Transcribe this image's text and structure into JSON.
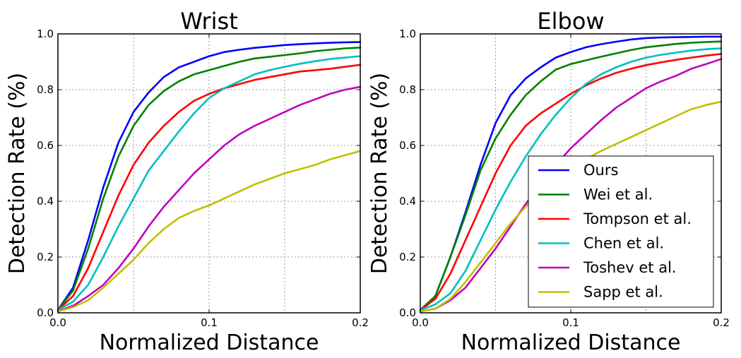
{
  "chart_data": [
    {
      "type": "line",
      "title": "Wrist",
      "xlabel": "Normalized Distance",
      "ylabel": "Detection Rate (%)",
      "xlim": [
        0.0,
        0.2
      ],
      "ylim": [
        0.0,
        1.0
      ],
      "xticks": [
        "0.0",
        "0.1",
        "0.2"
      ],
      "yticks": [
        "0.0",
        "0.2",
        "0.4",
        "0.6",
        "0.8",
        "1.0"
      ],
      "grid": true,
      "legend": null,
      "x": [
        0,
        0.01,
        0.02,
        0.03,
        0.04,
        0.05,
        0.06,
        0.07,
        0.08,
        0.09,
        0.1,
        0.11,
        0.12,
        0.13,
        0.14,
        0.15,
        0.16,
        0.17,
        0.18,
        0.19,
        0.2
      ],
      "series": [
        {
          "name": "Ours",
          "color": "#0000ff",
          "values": [
            0.01,
            0.09,
            0.26,
            0.45,
            0.61,
            0.72,
            0.79,
            0.845,
            0.88,
            0.9,
            0.92,
            0.935,
            0.943,
            0.95,
            0.955,
            0.96,
            0.963,
            0.966,
            0.968,
            0.97,
            0.971
          ]
        },
        {
          "name": "Wei et al.",
          "color": "#008000",
          "values": [
            0.01,
            0.08,
            0.23,
            0.41,
            0.56,
            0.67,
            0.745,
            0.795,
            0.83,
            0.855,
            0.87,
            0.885,
            0.9,
            0.912,
            0.918,
            0.924,
            0.93,
            0.938,
            0.943,
            0.948,
            0.951
          ]
        },
        {
          "name": "Tompson et al.",
          "color": "#ff0000",
          "values": [
            0.01,
            0.06,
            0.16,
            0.29,
            0.42,
            0.53,
            0.61,
            0.67,
            0.72,
            0.76,
            0.785,
            0.805,
            0.82,
            0.835,
            0.845,
            0.855,
            0.865,
            0.87,
            0.875,
            0.882,
            0.889
          ]
        },
        {
          "name": "Chen et al.",
          "color": "#00bfbf",
          "values": [
            0.01,
            0.04,
            0.1,
            0.2,
            0.31,
            0.41,
            0.51,
            0.58,
            0.65,
            0.715,
            0.77,
            0.805,
            0.83,
            0.855,
            0.87,
            0.882,
            0.893,
            0.902,
            0.91,
            0.915,
            0.92
          ]
        },
        {
          "name": "Toshev et al.",
          "color": "#bf00bf",
          "values": [
            0.005,
            0.025,
            0.06,
            0.1,
            0.16,
            0.23,
            0.31,
            0.38,
            0.44,
            0.5,
            0.55,
            0.6,
            0.64,
            0.67,
            0.695,
            0.72,
            0.745,
            0.765,
            0.785,
            0.8,
            0.81
          ]
        },
        {
          "name": "Sapp et al.",
          "color": "#bfbf00",
          "values": [
            0.005,
            0.02,
            0.045,
            0.09,
            0.14,
            0.19,
            0.25,
            0.3,
            0.34,
            0.365,
            0.385,
            0.41,
            0.435,
            0.46,
            0.48,
            0.5,
            0.515,
            0.53,
            0.55,
            0.565,
            0.58
          ]
        }
      ]
    },
    {
      "type": "line",
      "title": "Elbow",
      "xlabel": "Normalized Distance",
      "ylabel": "Detection Rate (%)",
      "xlim": [
        0.0,
        0.2
      ],
      "ylim": [
        0.0,
        1.0
      ],
      "xticks": [
        "0.0",
        "0.1",
        "0.2"
      ],
      "yticks": [
        "0.0",
        "0.2",
        "0.4",
        "0.6",
        "0.8",
        "1.0"
      ],
      "grid": true,
      "legend": "lower-right",
      "x": [
        0,
        0.01,
        0.02,
        0.03,
        0.04,
        0.05,
        0.06,
        0.07,
        0.08,
        0.09,
        0.1,
        0.11,
        0.12,
        0.13,
        0.14,
        0.15,
        0.16,
        0.17,
        0.18,
        0.19,
        0.2
      ],
      "series": [
        {
          "name": "Ours",
          "color": "#0000ff",
          "values": [
            0.01,
            0.06,
            0.2,
            0.36,
            0.53,
            0.68,
            0.78,
            0.84,
            0.88,
            0.915,
            0.935,
            0.952,
            0.963,
            0.972,
            0.98,
            0.985,
            0.987,
            0.988,
            0.989,
            0.99,
            0.99
          ]
        },
        {
          "name": "Wei et al.",
          "color": "#008000",
          "values": [
            0.01,
            0.06,
            0.2,
            0.35,
            0.51,
            0.625,
            0.71,
            0.78,
            0.83,
            0.872,
            0.892,
            0.905,
            0.918,
            0.93,
            0.942,
            0.952,
            0.958,
            0.964,
            0.968,
            0.971,
            0.973
          ]
        },
        {
          "name": "Tompson et al.",
          "color": "#ff0000",
          "values": [
            0.01,
            0.05,
            0.14,
            0.26,
            0.38,
            0.5,
            0.6,
            0.67,
            0.715,
            0.75,
            0.785,
            0.815,
            0.84,
            0.86,
            0.875,
            0.888,
            0.898,
            0.907,
            0.915,
            0.922,
            0.928
          ]
        },
        {
          "name": "Chen et al.",
          "color": "#00bfbf",
          "values": [
            0.01,
            0.03,
            0.07,
            0.15,
            0.26,
            0.37,
            0.47,
            0.56,
            0.64,
            0.71,
            0.77,
            0.82,
            0.855,
            0.88,
            0.9,
            0.915,
            0.925,
            0.933,
            0.94,
            0.945,
            0.948
          ]
        },
        {
          "name": "Toshev et al.",
          "color": "#bf00bf",
          "values": [
            0.005,
            0.015,
            0.045,
            0.09,
            0.16,
            0.23,
            0.31,
            0.39,
            0.46,
            0.53,
            0.59,
            0.64,
            0.69,
            0.735,
            0.77,
            0.805,
            0.83,
            0.85,
            0.875,
            0.892,
            0.91
          ]
        },
        {
          "name": "Sapp et al.",
          "color": "#bfbf00",
          "values": [
            0.005,
            0.015,
            0.05,
            0.11,
            0.18,
            0.25,
            0.32,
            0.38,
            0.435,
            0.48,
            0.515,
            0.55,
            0.58,
            0.605,
            0.63,
            0.655,
            0.68,
            0.705,
            0.73,
            0.745,
            0.757
          ]
        }
      ]
    }
  ]
}
